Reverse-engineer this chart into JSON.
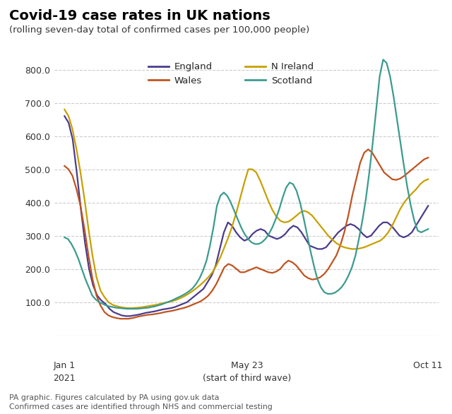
{
  "title": "Covid-19 case rates in UK nations",
  "subtitle": "(rolling seven-day total of confirmed cases per 100,000 people)",
  "footnote1": "PA graphic. Figures calculated by PA using gov.uk data",
  "footnote2": "Confirmed cases are identified through NHS and commercial testing",
  "xlabel_left_line1": "Jan 1",
  "xlabel_left_line2": "2021",
  "xlabel_mid_line1": "May 23",
  "xlabel_mid_line2": "(start of third wave)",
  "xlabel_right": "Oct 11",
  "ylim": [
    0,
    860
  ],
  "yticks": [
    100.0,
    200.0,
    300.0,
    400.0,
    500.0,
    600.0,
    700.0,
    800.0
  ],
  "color_england": "#4b3b8c",
  "color_wales": "#c0531f",
  "color_nireland": "#c8a000",
  "color_scotland": "#3a9b8e",
  "england": [
    660,
    640,
    590,
    490,
    380,
    280,
    200,
    150,
    120,
    105,
    95,
    80,
    70,
    65,
    60,
    58,
    58,
    60,
    62,
    65,
    68,
    70,
    72,
    75,
    78,
    80,
    82,
    85,
    90,
    95,
    100,
    110,
    120,
    130,
    140,
    160,
    180,
    210,
    260,
    310,
    340,
    330,
    310,
    295,
    285,
    290,
    305,
    315,
    320,
    315,
    300,
    295,
    290,
    295,
    305,
    320,
    330,
    325,
    310,
    290,
    270,
    265,
    260,
    260,
    265,
    280,
    295,
    310,
    320,
    330,
    335,
    330,
    320,
    305,
    295,
    300,
    315,
    330,
    340,
    340,
    330,
    315,
    300,
    295,
    300,
    310,
    330,
    350,
    370,
    390
  ],
  "wales": [
    510,
    500,
    480,
    440,
    390,
    320,
    240,
    170,
    120,
    90,
    70,
    60,
    55,
    52,
    50,
    50,
    50,
    52,
    55,
    58,
    60,
    62,
    63,
    65,
    67,
    70,
    72,
    74,
    77,
    80,
    83,
    87,
    92,
    97,
    102,
    110,
    120,
    135,
    155,
    180,
    205,
    215,
    210,
    200,
    190,
    190,
    195,
    200,
    205,
    200,
    195,
    190,
    188,
    192,
    200,
    215,
    225,
    220,
    210,
    195,
    180,
    172,
    168,
    170,
    175,
    185,
    200,
    220,
    240,
    270,
    310,
    360,
    420,
    470,
    520,
    550,
    560,
    550,
    530,
    510,
    490,
    480,
    470,
    468,
    472,
    480,
    490,
    500,
    510,
    520,
    530,
    535
  ],
  "nireland": [
    680,
    660,
    620,
    560,
    490,
    410,
    320,
    240,
    175,
    135,
    115,
    100,
    92,
    88,
    85,
    83,
    82,
    82,
    83,
    84,
    86,
    88,
    90,
    92,
    95,
    98,
    100,
    103,
    107,
    112,
    118,
    125,
    133,
    142,
    152,
    163,
    175,
    190,
    210,
    235,
    265,
    295,
    330,
    370,
    415,
    460,
    500,
    500,
    490,
    465,
    435,
    405,
    378,
    358,
    345,
    340,
    342,
    350,
    360,
    370,
    375,
    370,
    360,
    345,
    330,
    315,
    300,
    288,
    278,
    270,
    265,
    262,
    260,
    260,
    262,
    265,
    270,
    275,
    280,
    285,
    295,
    310,
    330,
    355,
    380,
    400,
    415,
    428,
    440,
    455,
    465,
    470
  ],
  "scotland": [
    295,
    290,
    275,
    255,
    230,
    200,
    170,
    145,
    120,
    108,
    100,
    95,
    90,
    87,
    85,
    83,
    82,
    81,
    80,
    80,
    80,
    80,
    81,
    82,
    83,
    85,
    87,
    90,
    93,
    97,
    101,
    105,
    110,
    115,
    120,
    126,
    133,
    142,
    155,
    172,
    195,
    225,
    270,
    325,
    390,
    420,
    430,
    420,
    400,
    375,
    350,
    325,
    305,
    290,
    280,
    275,
    275,
    280,
    290,
    305,
    325,
    350,
    380,
    415,
    445,
    460,
    455,
    435,
    400,
    355,
    305,
    255,
    210,
    170,
    145,
    130,
    125,
    125,
    128,
    135,
    145,
    160,
    180,
    205,
    240,
    290,
    345,
    410,
    490,
    580,
    680,
    780,
    830,
    820,
    780,
    720,
    650,
    580,
    510,
    445,
    390,
    345,
    315,
    310,
    315,
    320
  ]
}
